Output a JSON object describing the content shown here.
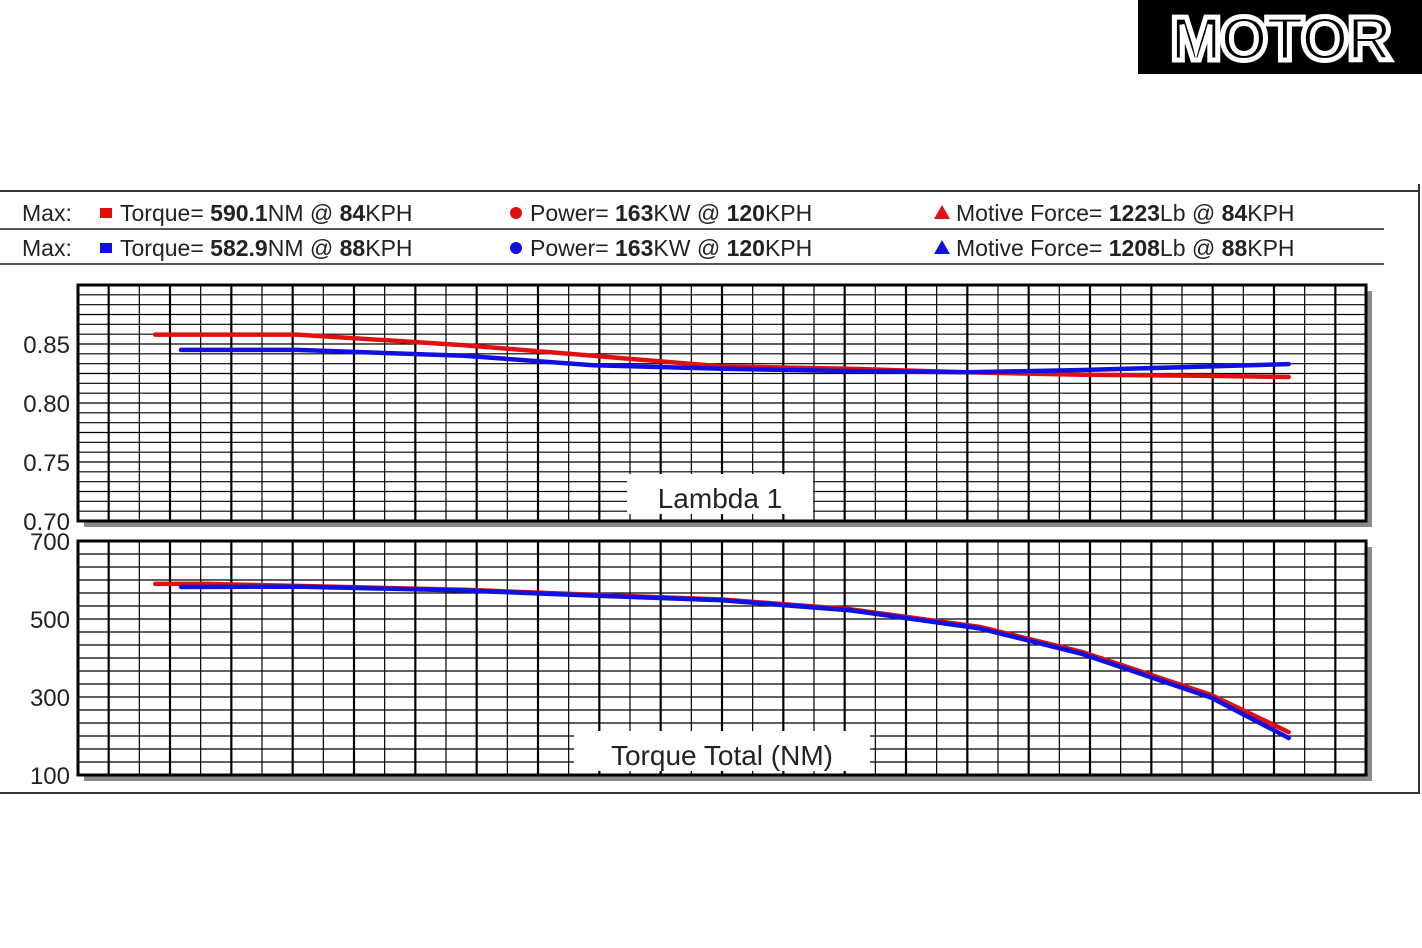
{
  "logo": {
    "text": "MOTOR"
  },
  "legend": [
    {
      "color": "#e01010",
      "prefix": "Max:",
      "items": [
        {
          "marker": "square",
          "label": "Torque=",
          "value": "590.1",
          "unit": "NM",
          "at": "@",
          "speed": "84",
          "speed_unit": "KPH"
        },
        {
          "marker": "circle",
          "label": "Power=",
          "value": "163",
          "unit": "KW",
          "at": "@",
          "speed": "120",
          "speed_unit": "KPH"
        },
        {
          "marker": "triangle",
          "label": "Motive Force=",
          "value": "1223",
          "unit": "Lb",
          "at": "@",
          "speed": "84",
          "speed_unit": "KPH"
        }
      ]
    },
    {
      "color": "#1010e0",
      "prefix": "Max:",
      "items": [
        {
          "marker": "square",
          "label": "Torque=",
          "value": "582.9",
          "unit": "NM",
          "at": "@",
          "speed": "88",
          "speed_unit": "KPH"
        },
        {
          "marker": "circle",
          "label": "Power=",
          "value": "163",
          "unit": "KW",
          "at": "@",
          "speed": "120",
          "speed_unit": "KPH"
        },
        {
          "marker": "triangle",
          "label": "Motive Force=",
          "value": "1208",
          "unit": "Lb",
          "at": "@",
          "speed": "88",
          "speed_unit": "KPH"
        }
      ]
    }
  ],
  "colors": {
    "series_a": "#e01010",
    "series_b": "#1010e0",
    "grid": "#000000",
    "shadow": "#8a8a8a"
  },
  "chart_data": [
    {
      "type": "line",
      "title": "Lambda 1",
      "ylim": [
        0.7,
        0.9
      ],
      "yticks": [
        "0.85",
        "0.80",
        "0.75",
        "0.70"
      ],
      "ytick_values": [
        0.85,
        0.8,
        0.75,
        0.7
      ],
      "grid": true,
      "xlim": [
        0,
        100
      ],
      "series": [
        {
          "color": "#e01010",
          "x": [
            6,
            8,
            17,
            30,
            40,
            50,
            60,
            69,
            78,
            88,
            94
          ],
          "y": [
            0.858,
            0.858,
            0.858,
            0.849,
            0.84,
            0.831,
            0.829,
            0.826,
            0.824,
            0.823,
            0.822
          ]
        },
        {
          "color": "#1010e0",
          "x": [
            8,
            17,
            30,
            40,
            50,
            60,
            69,
            78,
            88,
            94
          ],
          "y": [
            0.845,
            0.845,
            0.84,
            0.832,
            0.829,
            0.827,
            0.826,
            0.828,
            0.831,
            0.833
          ]
        }
      ]
    },
    {
      "type": "line",
      "title": "Torque Total (NM)",
      "ylim": [
        100,
        700
      ],
      "yticks": [
        "700",
        "500",
        "300",
        "100"
      ],
      "ytick_values": [
        700,
        500,
        300,
        100
      ],
      "grid": true,
      "xlim": [
        0,
        100
      ],
      "series": [
        {
          "color": "#e01010",
          "x": [
            6,
            10,
            17,
            30,
            40,
            50,
            60,
            70,
            78,
            88,
            94
          ],
          "y": [
            590,
            590,
            585,
            575,
            562,
            550,
            525,
            480,
            415,
            305,
            210
          ]
        },
        {
          "color": "#1010e0",
          "x": [
            8,
            17,
            30,
            40,
            50,
            60,
            70,
            78,
            88,
            94
          ],
          "y": [
            582,
            583,
            573,
            560,
            548,
            522,
            476,
            410,
            298,
            195
          ]
        }
      ]
    }
  ]
}
